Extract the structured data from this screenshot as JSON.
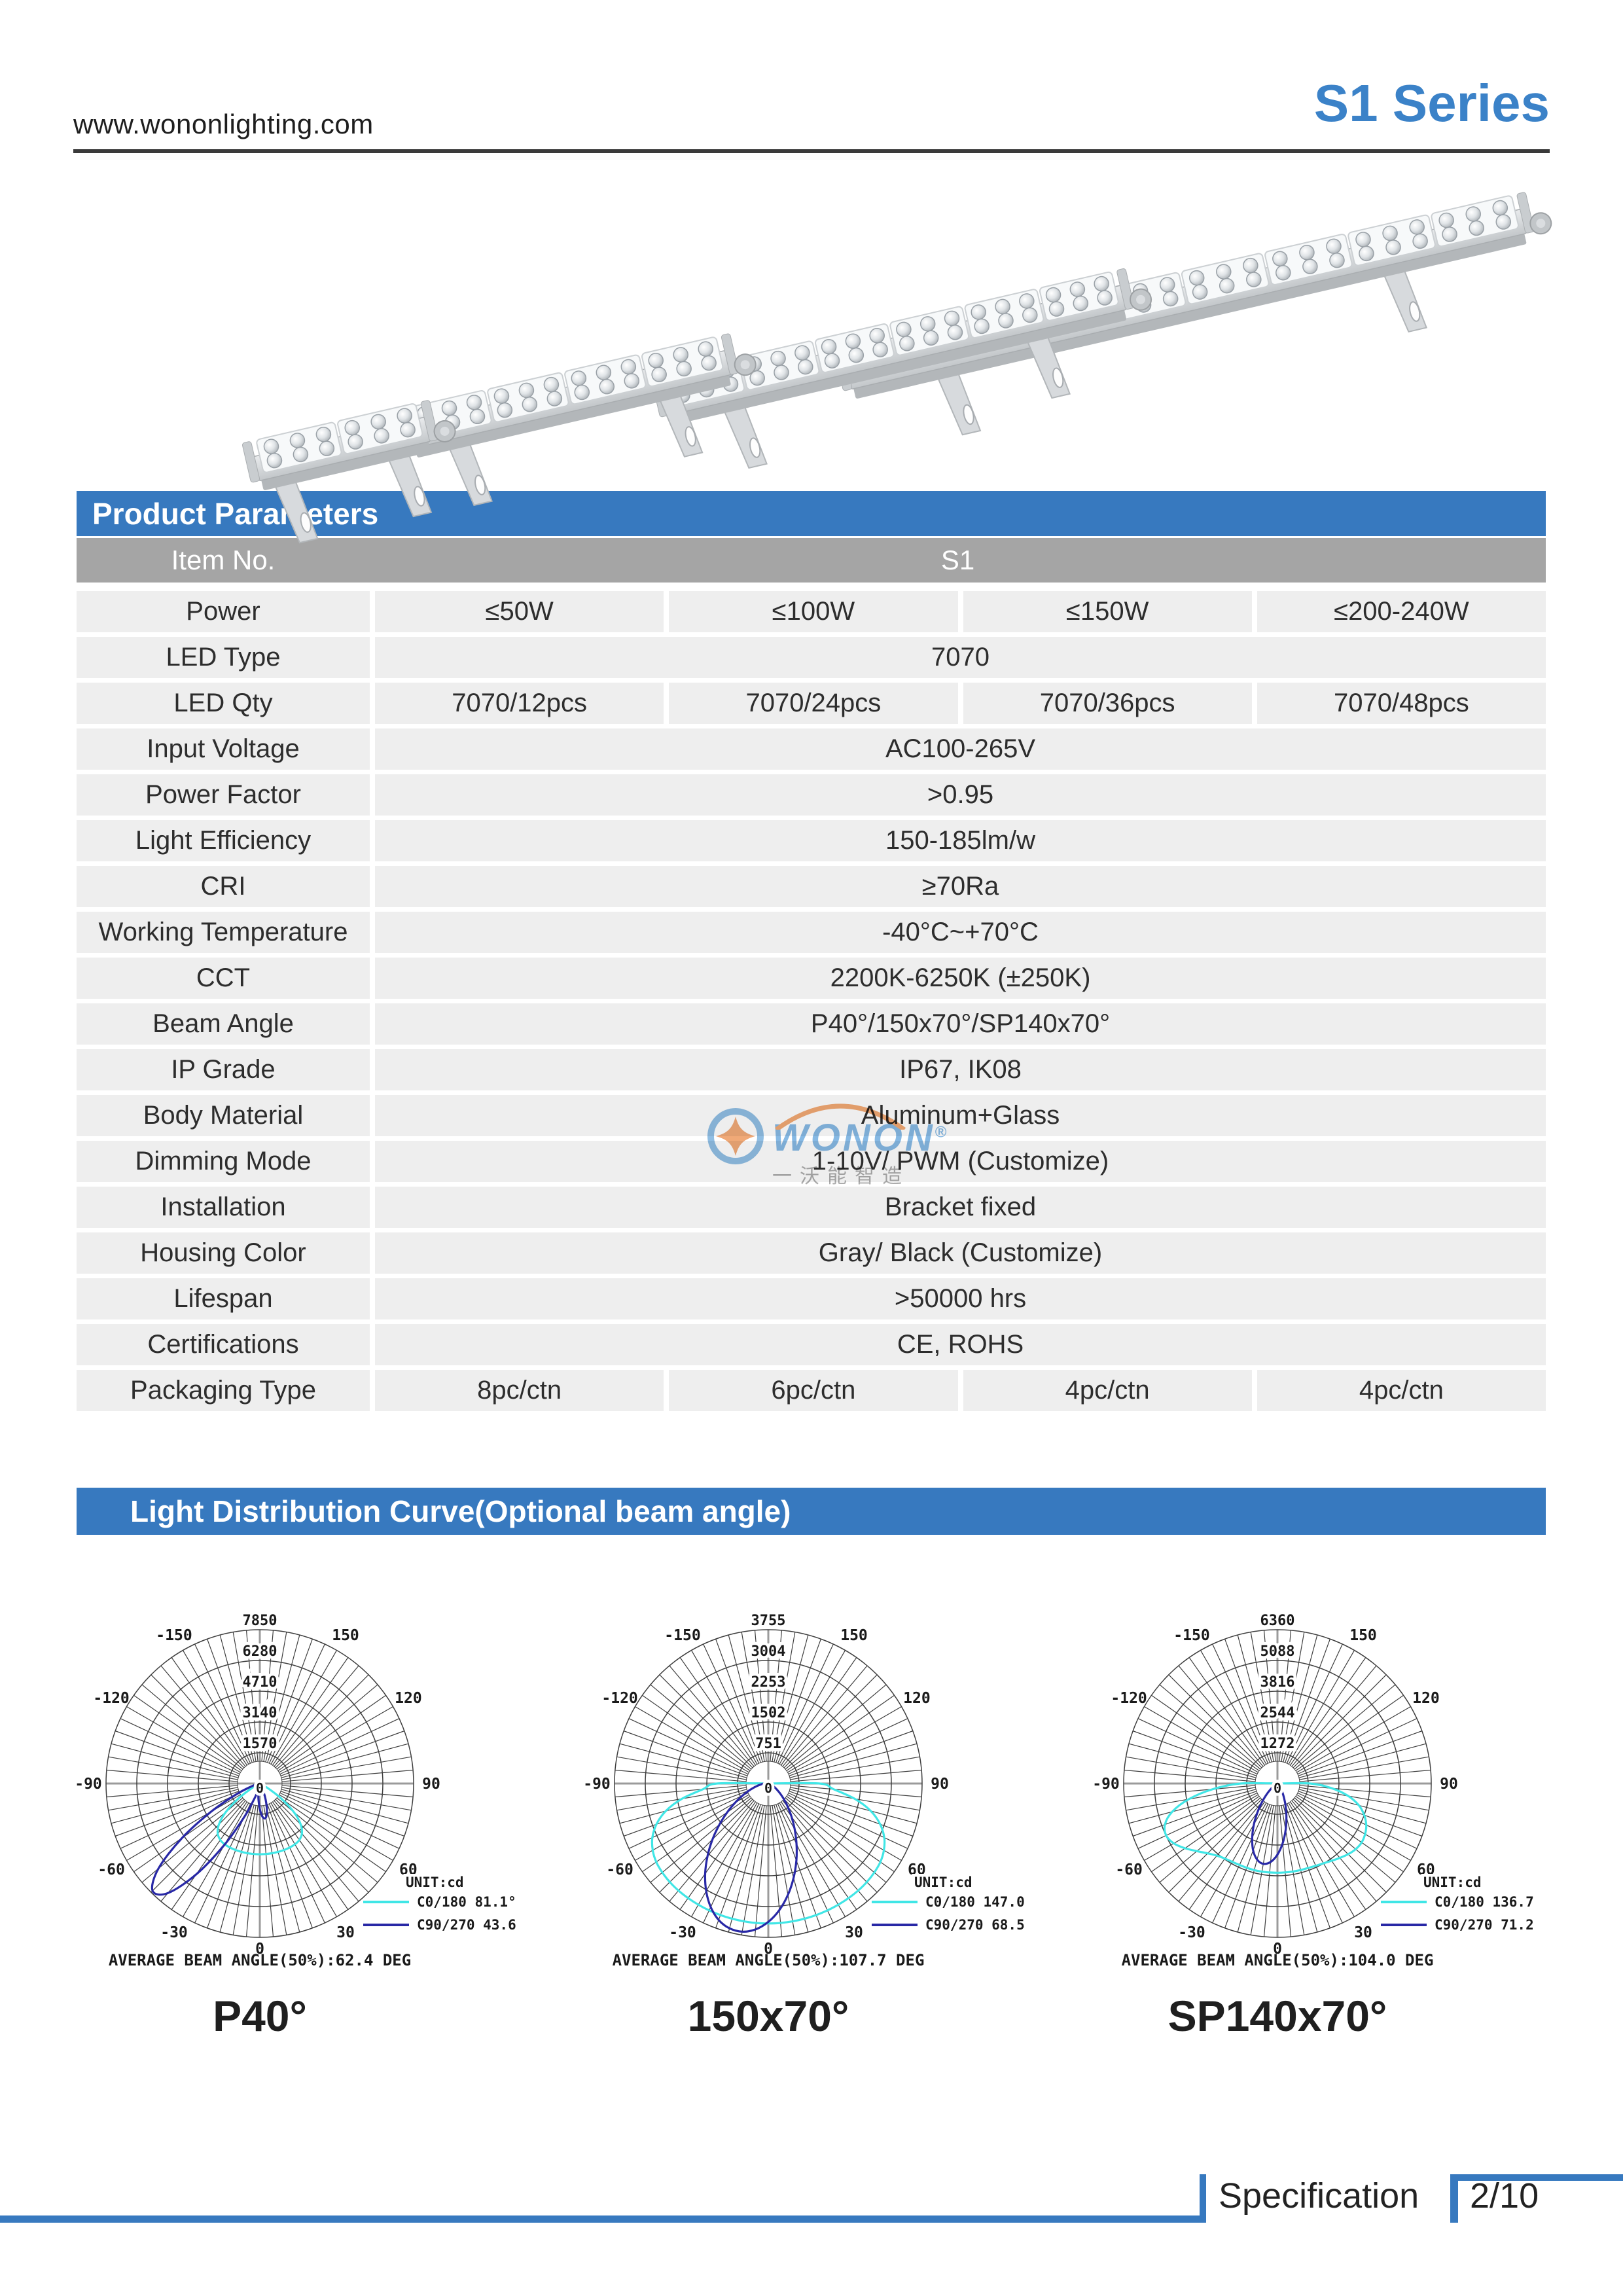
{
  "header": {
    "url": "www.wononlighting.com",
    "series": "S1 Series"
  },
  "sections": {
    "parameters_title": "Product Parameters",
    "distribution_title": "Light Distribution Curve(Optional beam angle)"
  },
  "table": {
    "item_no_label": "Item No.",
    "item_no_value": "S1",
    "rows": [
      {
        "label": "Power",
        "values": [
          "≤50W",
          "≤100W",
          "≤150W",
          "≤200-240W"
        ]
      },
      {
        "label": "LED Type",
        "values": [
          "7070"
        ]
      },
      {
        "label": "LED Qty",
        "values": [
          "7070/12pcs",
          "7070/24pcs",
          "7070/36pcs",
          "7070/48pcs"
        ]
      },
      {
        "label": "Input Voltage",
        "values": [
          "AC100-265V"
        ]
      },
      {
        "label": "Power Factor",
        "values": [
          ">0.95"
        ]
      },
      {
        "label": "Light Efficiency",
        "values": [
          "150-185lm/w"
        ]
      },
      {
        "label": "CRI",
        "values": [
          "≥70Ra"
        ]
      },
      {
        "label": "Working Temperature",
        "values": [
          "-40°C~+70°C"
        ]
      },
      {
        "label": "CCT",
        "values": [
          "2200K-6250K (±250K)"
        ]
      },
      {
        "label": "Beam Angle",
        "values": [
          "P40°/150x70°/SP140x70°"
        ]
      },
      {
        "label": "IP Grade",
        "values": [
          "IP67, IK08"
        ]
      },
      {
        "label": "Body Material",
        "values": [
          "Aluminum+Glass"
        ]
      },
      {
        "label": "Dimming Mode",
        "values": [
          "1-10V/ PWM (Customize)"
        ]
      },
      {
        "label": "Installation",
        "values": [
          "Bracket fixed"
        ]
      },
      {
        "label": "Housing Color",
        "values": [
          "Gray/ Black (Customize)"
        ]
      },
      {
        "label": "Lifespan",
        "values": [
          ">50000 hrs"
        ]
      },
      {
        "label": "Certifications",
        "values": [
          "CE, ROHS"
        ]
      },
      {
        "label": "Packaging Type",
        "values": [
          "8pc/ctn",
          "6pc/ctn",
          "4pc/ctn",
          "4pc/ctn"
        ]
      }
    ]
  },
  "watermark": {
    "brand": "WONON",
    "registered": "®",
    "cn": "一沃能智造"
  },
  "charts": [
    {
      "type": "polar-line",
      "beam_label": "P40°",
      "caption": "AVERAGE BEAM ANGLE(50%):62.4 DEG",
      "unit": "UNIT:cd",
      "center_label": "0",
      "rings": [
        1570,
        3140,
        4710,
        6280,
        7850
      ],
      "angle_labels": [
        -150,
        150,
        -120,
        120,
        -90,
        90,
        -60,
        60,
        -30,
        30,
        0
      ],
      "legend": [
        {
          "label": "C0/180 81.1°",
          "color": "#40e6e6"
        },
        {
          "label": "C90/270 43.6°",
          "color": "#2828a6"
        }
      ],
      "series": [
        {
          "name": "C0/180",
          "color": "#40e6e6",
          "points": [
            [
              -70,
              0
            ],
            [
              -65,
              80
            ],
            [
              -60,
              485
            ],
            [
              -55,
              1330
            ],
            [
              -50,
              2266
            ],
            [
              -45,
              2954
            ],
            [
              -40,
              3340
            ],
            [
              -35,
              3515
            ],
            [
              -30,
              3583
            ],
            [
              -25,
              3605
            ],
            [
              -20,
              3610
            ],
            [
              -15,
              3610
            ],
            [
              -10,
              3611
            ],
            [
              -5,
              3611
            ],
            [
              0,
              3611
            ],
            [
              5,
              3611
            ],
            [
              10,
              3611
            ],
            [
              15,
              3610
            ],
            [
              20,
              3610
            ],
            [
              25,
              3605
            ],
            [
              30,
              3583
            ],
            [
              35,
              3515
            ],
            [
              40,
              3340
            ],
            [
              45,
              2954
            ],
            [
              50,
              2266
            ],
            [
              55,
              1330
            ],
            [
              60,
              485
            ],
            [
              65,
              80
            ],
            [
              70,
              0
            ]
          ]
        },
        {
          "name": "C90/270",
          "color": "#2828a6",
          "points": [
            [
              -90,
              0
            ],
            [
              -85,
              11
            ],
            [
              -80,
              49
            ],
            [
              -75,
              183
            ],
            [
              -70,
              555
            ],
            [
              -65,
              1390
            ],
            [
              -60,
              2860
            ],
            [
              -55,
              4850
            ],
            [
              -50,
              6753
            ],
            [
              -45,
              7741
            ],
            [
              -40,
              7300
            ],
            [
              -35,
              5666
            ],
            [
              -30,
              3613
            ],
            [
              -25,
              1898
            ],
            [
              -20,
              850
            ],
            [
              -15,
              412
            ],
            [
              -10,
              437
            ],
            [
              -5,
              790
            ],
            [
              0,
              1303
            ],
            [
              5,
              1724
            ],
            [
              10,
              1769
            ],
            [
              15,
              1407
            ],
            [
              20,
              867
            ],
            [
              25,
              415
            ],
            [
              30,
              154
            ],
            [
              35,
              50
            ],
            [
              40,
              0
            ]
          ]
        }
      ]
    },
    {
      "type": "polar-line",
      "beam_label": "150x70°",
      "caption": "AVERAGE BEAM ANGLE(50%):107.7 DEG",
      "unit": "UNIT:cd",
      "center_label": "0",
      "rings": [
        751,
        1502,
        2253,
        3004,
        3755
      ],
      "angle_labels": [
        -150,
        150,
        -120,
        120,
        -90,
        90,
        -60,
        60,
        -30,
        30,
        0
      ],
      "legend": [
        {
          "label": "C0/180 147.0°",
          "color": "#40e6e6"
        },
        {
          "label": "C90/270 68.5°",
          "color": "#2828a6"
        }
      ],
      "series": [
        {
          "name": "C0/180",
          "color": "#40e6e6",
          "points": [
            [
              -90,
              1254
            ],
            [
              -85,
              1600
            ],
            [
              -80,
              2140
            ],
            [
              -75,
              2591
            ],
            [
              -70,
              2906
            ],
            [
              -65,
              3124
            ],
            [
              -60,
              3259
            ],
            [
              -55,
              3340
            ],
            [
              -50,
              3379
            ],
            [
              -45,
              3402
            ],
            [
              -40,
              3412
            ],
            [
              -35,
              3415
            ],
            [
              -30,
              3416
            ],
            [
              -25,
              3417
            ],
            [
              -20,
              3417
            ],
            [
              -15,
              3417
            ],
            [
              -10,
              3417
            ],
            [
              -5,
              3417
            ],
            [
              0,
              3417
            ],
            [
              5,
              3417
            ],
            [
              10,
              3417
            ],
            [
              15,
              3417
            ],
            [
              20,
              3417
            ],
            [
              25,
              3417
            ],
            [
              30,
              3416
            ],
            [
              35,
              3415
            ],
            [
              40,
              3412
            ],
            [
              45,
              3402
            ],
            [
              50,
              3379
            ],
            [
              55,
              3340
            ],
            [
              60,
              3259
            ],
            [
              65,
              3124
            ],
            [
              70,
              2906
            ],
            [
              75,
              2591
            ],
            [
              80,
              2140
            ],
            [
              85,
              1600
            ],
            [
              90,
              1254
            ]
          ]
        },
        {
          "name": "C90/270",
          "color": "#2828a6",
          "points": [
            [
              -90,
              99
            ],
            [
              -85,
              155
            ],
            [
              -80,
              235
            ],
            [
              -75,
              347
            ],
            [
              -70,
              497
            ],
            [
              -65,
              692
            ],
            [
              -60,
              934
            ],
            [
              -55,
              1225
            ],
            [
              -50,
              1559
            ],
            [
              -45,
              1925
            ],
            [
              -40,
              2308
            ],
            [
              -35,
              2687
            ],
            [
              -30,
              3033
            ],
            [
              -25,
              3328
            ],
            [
              -20,
              3544
            ],
            [
              -15,
              3660
            ],
            [
              -10,
              3672
            ],
            [
              -5,
              3575
            ],
            [
              0,
              3378
            ],
            [
              5,
              3100
            ],
            [
              10,
              2759
            ],
            [
              15,
              2386
            ],
            [
              20,
              2003
            ],
            [
              25,
              1631
            ],
            [
              30,
              1287
            ],
            [
              35,
              989
            ],
            [
              40,
              737
            ],
            [
              45,
              534
            ],
            [
              50,
              373
            ],
            [
              55,
              255
            ],
            [
              60,
              169
            ],
            [
              65,
              110
            ],
            [
              70,
              70
            ],
            [
              75,
              45
            ],
            [
              80,
              0
            ]
          ]
        }
      ]
    },
    {
      "type": "polar-line",
      "beam_label": "SP140x70°",
      "caption": "AVERAGE BEAM ANGLE(50%):104.0 DEG",
      "unit": "UNIT:cd",
      "center_label": "0",
      "rings": [
        1272,
        2544,
        3816,
        5088,
        6360
      ],
      "angle_labels": [
        -150,
        150,
        -120,
        120,
        -90,
        90,
        -60,
        60,
        -30,
        30,
        0
      ],
      "legend": [
        {
          "label": "C0/180 136.7°",
          "color": "#40e6e6"
        },
        {
          "label": "C90/270 71.2°",
          "color": "#2828a6"
        }
      ],
      "series": [
        {
          "name": "C0/180",
          "color": "#40e6e6",
          "points": [
            [
              -90,
              1525
            ],
            [
              -85,
              2684
            ],
            [
              -80,
              3722
            ],
            [
              -75,
              4505
            ],
            [
              -70,
              4951
            ],
            [
              -65,
              5078
            ],
            [
              -60,
              4949
            ],
            [
              -55,
              4667
            ],
            [
              -50,
              4350
            ],
            [
              -45,
              4083
            ],
            [
              -40,
              3892
            ],
            [
              -35,
              3790
            ],
            [
              -30,
              3740
            ],
            [
              -25,
              3714
            ],
            [
              -20,
              3710
            ],
            [
              -15,
              3707
            ],
            [
              -10,
              3700
            ],
            [
              -5,
              3693
            ],
            [
              0,
              3689
            ],
            [
              5,
              3690
            ],
            [
              10,
              3693
            ],
            [
              15,
              3703
            ],
            [
              20,
              3716
            ],
            [
              25,
              3755
            ],
            [
              30,
              3808
            ],
            [
              35,
              3900
            ],
            [
              40,
              4014
            ],
            [
              45,
              4134
            ],
            [
              50,
              4223
            ],
            [
              55,
              4249
            ],
            [
              60,
              4185
            ],
            [
              65,
              4051
            ],
            [
              70,
              3816
            ],
            [
              75,
              3485
            ],
            [
              80,
              2976
            ],
            [
              85,
              2264
            ],
            [
              90,
              1361
            ]
          ]
        },
        {
          "name": "C90/270",
          "color": "#2828a6",
          "points": [
            [
              -75,
              0
            ],
            [
              -70,
              24
            ],
            [
              -65,
              53
            ],
            [
              -60,
              109
            ],
            [
              -55,
              209
            ],
            [
              -50,
              378
            ],
            [
              -45,
              627
            ],
            [
              -40,
              981
            ],
            [
              -35,
              1430
            ],
            [
              -30,
              1949
            ],
            [
              -25,
              2474
            ],
            [
              -20,
              2940
            ],
            [
              -15,
              3256
            ],
            [
              -10,
              3371
            ],
            [
              -5,
              3256
            ],
            [
              0,
              2940
            ],
            [
              5,
              2474
            ],
            [
              10,
              1949
            ],
            [
              15,
              1430
            ],
            [
              20,
              981
            ],
            [
              25,
              627
            ],
            [
              30,
              378
            ],
            [
              35,
              209
            ],
            [
              40,
              109
            ],
            [
              45,
              53
            ],
            [
              50,
              24
            ],
            [
              55,
              0
            ]
          ]
        }
      ]
    }
  ],
  "footer": {
    "spec_label": "Specification",
    "page": "2/10"
  },
  "colors": {
    "accent_blue": "#3779bf",
    "header_gray": "#a5a5a5",
    "row_bg": "#eeeeee",
    "curve_c0": "#40e6e6",
    "curve_c90": "#2828a6"
  }
}
